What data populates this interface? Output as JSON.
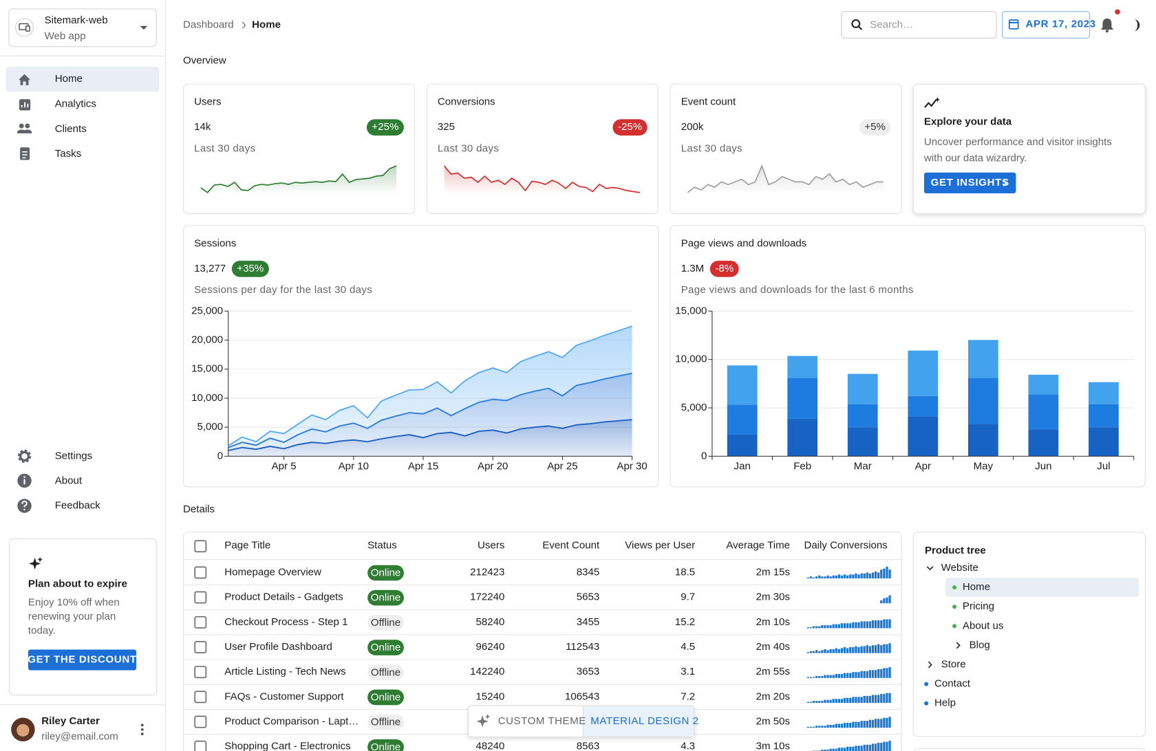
{
  "sidebar": {
    "app_name": "Sitemark-web",
    "app_type": "Web app",
    "nav": [
      "Home",
      "Analytics",
      "Clients",
      "Tasks"
    ],
    "secondary_nav": [
      "Settings",
      "About",
      "Feedback"
    ],
    "promo": {
      "title": "Plan about to expire",
      "text_lines": [
        "Enjoy 10% off when",
        "renewing your plan",
        "today."
      ],
      "button": "GET THE DISCOUNT"
    },
    "user": {
      "name": "Riley Carter",
      "email": "riley@email.com"
    }
  },
  "header": {
    "breadcrumb": [
      "Dashboard",
      "Home"
    ],
    "search_placeholder": "Search…",
    "date": "APR 17, 2023"
  },
  "overview_title": "Overview",
  "stat_cards": [
    {
      "title": "Users",
      "value": "14k",
      "trend": "+25%",
      "trend_color": "#2e7d32",
      "trend_text_color": "#ffffff",
      "period": "Last 30 days",
      "line_color": "#2e7d32",
      "spark": [
        480,
        410,
        520,
        530,
        500,
        560,
        450,
        440,
        510,
        530,
        520,
        540,
        550,
        530,
        560,
        550,
        560,
        570,
        560,
        580,
        570,
        680,
        560,
        600,
        610,
        620,
        650,
        660,
        760,
        800
      ]
    },
    {
      "title": "Conversions",
      "value": "325",
      "trend": "-25%",
      "trend_color": "#d32f2f",
      "trend_text_color": "#ffffff",
      "period": "Last 30 days",
      "line_color": "#d32f2f",
      "spark": [
        720,
        640,
        650,
        600,
        610,
        560,
        620,
        560,
        580,
        540,
        600,
        560,
        480,
        570,
        560,
        540,
        580,
        550,
        500,
        560,
        520,
        510,
        470,
        540,
        500,
        510,
        500,
        480,
        470,
        460
      ]
    },
    {
      "title": "Event count",
      "value": "200k",
      "trend": "+5%",
      "trend_color": "#eeeeee",
      "trend_text_color": "#333333",
      "period": "Last 30 days",
      "line_color": "#9e9e9e",
      "spark": [
        520,
        540,
        530,
        550,
        540,
        560,
        550,
        560,
        570,
        550,
        560,
        620,
        550,
        560,
        580,
        570,
        560,
        560,
        550,
        580,
        570,
        590,
        560,
        570,
        550,
        560,
        540,
        550,
        560,
        560
      ]
    }
  ],
  "explore": {
    "title": "Explore your data",
    "text_lines": [
      "Uncover performance and visitor insights",
      "with our data wizardry."
    ],
    "button": "GET INSIGHTS"
  },
  "chart_data": [
    {
      "type": "area",
      "title": "Sessions",
      "value": "13,277",
      "trend": "+35%",
      "trend_color": "#2e7d32",
      "subtitle": "Sessions per day for the last 30 days",
      "stacked": true,
      "grid": true,
      "categories": [
        null,
        null,
        null,
        null,
        "Apr 5",
        null,
        null,
        null,
        null,
        "Apr 10",
        null,
        null,
        null,
        null,
        "Apr 15",
        null,
        null,
        null,
        null,
        "Apr 20",
        null,
        null,
        null,
        null,
        "Apr 25",
        null,
        null,
        null,
        null,
        "Apr 30"
      ],
      "series": [
        {
          "color": "#1f5fbf",
          "values": [
            1000,
            1500,
            1200,
            1700,
            1300,
            2000,
            2400,
            2200,
            2600,
            2800,
            2500,
            3000,
            3400,
            3700,
            3200,
            3900,
            4100,
            3500,
            4300,
            4500,
            4000,
            4700,
            5000,
            5200,
            4800,
            5400,
            5600,
            5900,
            6100,
            6300
          ]
        },
        {
          "color": "#2b78d8",
          "values": [
            500,
            900,
            700,
            1400,
            1100,
            1700,
            2300,
            2000,
            2600,
            2900,
            2300,
            3200,
            3500,
            3800,
            4100,
            4400,
            2900,
            4700,
            5000,
            5300,
            5600,
            5900,
            6200,
            6500,
            5600,
            6800,
            7100,
            7400,
            7700,
            8000
          ]
        },
        {
          "color": "#5aacf2",
          "values": [
            300,
            900,
            600,
            1200,
            1500,
            1800,
            2400,
            2100,
            2700,
            3000,
            1800,
            3300,
            3600,
            3900,
            4200,
            4500,
            3900,
            4800,
            5100,
            5400,
            4800,
            5700,
            6000,
            6300,
            6600,
            6900,
            7200,
            7500,
            7800,
            8100
          ]
        }
      ],
      "ylim": [
        0,
        25000
      ],
      "yticks": [
        0,
        {
          "value": 5000,
          "label": "5,000"
        },
        {
          "value": 10000,
          "label": "10,000"
        },
        {
          "value": 15000,
          "label": "15,000"
        },
        {
          "value": 20000,
          "label": "20,000"
        },
        {
          "value": 25000,
          "label": "25,000"
        }
      ]
    },
    {
      "type": "bar",
      "title": "Page views and downloads",
      "value": "1.3M",
      "trend": "-8%",
      "trend_color": "#d32f2f",
      "subtitle": "Page views and downloads for the last 6 months",
      "stacked": true,
      "grid": true,
      "categories": [
        "Jan",
        "Feb",
        "Mar",
        "Apr",
        "May",
        "Jun",
        "Jul"
      ],
      "series": [
        {
          "color": "#1763c4",
          "values": [
            2234,
            3872,
            2998,
            4125,
            3357,
            2789,
            2998
          ]
        },
        {
          "color": "#1e7be0",
          "values": [
            3098,
            4215,
            2384,
            2101,
            4752,
            3593,
            2384
          ]
        },
        {
          "color": "#42a2ee",
          "values": [
            4051,
            2275,
            3129,
            4693,
            3904,
            2038,
            2275
          ]
        }
      ],
      "ylim": [
        0,
        15000
      ],
      "yticks": [
        0,
        {
          "value": 5000,
          "label": "5,000"
        },
        {
          "value": 10000,
          "label": "10,000"
        },
        {
          "value": 15000,
          "label": "15,000"
        }
      ]
    }
  ],
  "details": {
    "title": "Details",
    "columns": [
      "Page Title",
      "Status",
      "Users",
      "Event Count",
      "Views per User",
      "Average Time",
      "Daily Conversions"
    ],
    "status_colors": {
      "Online": {
        "bg": "#2e7d32",
        "fg": "#ffffff"
      },
      "Offline": {
        "bg": "#eeeeee",
        "fg": "#333333"
      }
    },
    "bar_color": "#1976d2",
    "rows": [
      {
        "title": "Homepage Overview",
        "status": "Online",
        "users": 212423,
        "event_count": 8345,
        "views_per_user": 18.5,
        "avg_time": "2m 15s",
        "conversions": [
          1,
          2,
          1,
          2,
          3,
          2,
          2,
          3,
          2,
          3,
          3,
          4,
          3,
          4,
          3,
          4,
          4,
          5,
          4,
          5,
          5,
          6,
          5,
          6,
          7,
          6,
          9,
          10,
          12,
          9
        ]
      },
      {
        "title": "Product Details - Gadgets",
        "status": "Online",
        "users": 172240,
        "event_count": 5653,
        "views_per_user": 9.7,
        "avg_time": "2m 30s",
        "conversions": [
          0,
          0,
          0,
          0,
          0,
          0,
          0,
          0,
          0,
          0,
          0,
          0,
          0,
          0,
          0,
          0,
          0,
          0,
          0,
          0,
          0,
          0,
          0,
          0,
          0,
          0,
          3,
          5,
          6,
          8
        ]
      },
      {
        "title": "Checkout Process - Step 1",
        "status": "Offline",
        "users": 58240,
        "event_count": 3455,
        "views_per_user": 15.2,
        "avg_time": "2m 10s",
        "conversions": [
          1,
          1,
          2,
          2,
          2,
          3,
          3,
          3,
          3,
          4,
          4,
          4,
          5,
          5,
          5,
          5,
          6,
          6,
          6,
          7,
          7,
          7,
          7,
          8,
          8,
          8,
          8,
          9,
          9,
          9
        ]
      },
      {
        "title": "User Profile Dashboard",
        "status": "Online",
        "users": 96240,
        "event_count": 112543,
        "views_per_user": 4.5,
        "avg_time": "2m 40s",
        "conversions": [
          1,
          2,
          2,
          3,
          2,
          3,
          4,
          3,
          4,
          4,
          5,
          4,
          5,
          6,
          5,
          6,
          6,
          7,
          6,
          7,
          7,
          8,
          7,
          8,
          8,
          9,
          8,
          9,
          9,
          10
        ]
      },
      {
        "title": "Article Listing - Tech News",
        "status": "Offline",
        "users": 142240,
        "event_count": 3653,
        "views_per_user": 3.1,
        "avg_time": "2m 55s",
        "conversions": [
          1,
          1,
          1,
          2,
          2,
          2,
          3,
          3,
          3,
          3,
          4,
          4,
          4,
          5,
          5,
          5,
          6,
          6,
          6,
          7,
          7,
          7,
          8,
          8,
          8,
          9,
          9,
          10,
          10,
          11
        ]
      },
      {
        "title": "FAQs - Customer Support",
        "status": "Online",
        "users": 15240,
        "event_count": 106543,
        "views_per_user": 7.2,
        "avg_time": "2m 20s",
        "conversions": [
          1,
          1,
          2,
          2,
          2,
          2,
          3,
          3,
          3,
          4,
          4,
          4,
          4,
          5,
          5,
          5,
          6,
          6,
          6,
          6,
          7,
          7,
          7,
          8,
          8,
          8,
          9,
          9,
          10,
          10
        ]
      },
      {
        "title": "Product Comparison - Lapt…",
        "status": "Offline",
        "users": null,
        "event_count": null,
        "views_per_user": null,
        "avg_time": "2m 50s",
        "conversions": [
          1,
          1,
          1,
          2,
          2,
          2,
          2,
          3,
          3,
          3,
          4,
          4,
          4,
          5,
          5,
          5,
          6,
          6,
          6,
          7,
          7,
          7,
          8,
          8,
          9,
          9,
          9,
          10,
          10,
          11
        ]
      },
      {
        "title": "Shopping Cart - Electronics",
        "status": "Online",
        "users": 48240,
        "event_count": 8563,
        "views_per_user": 4.3,
        "avg_time": "3m 10s",
        "conversions": [
          1,
          1,
          2,
          2,
          2,
          3,
          3,
          3,
          4,
          4,
          4,
          5,
          5,
          5,
          6,
          6,
          6,
          7,
          7,
          7,
          8,
          8,
          8,
          9,
          9,
          10,
          10,
          11,
          11,
          12
        ]
      }
    ]
  },
  "tree": {
    "title": "Product tree",
    "items": [
      {
        "label": "Website",
        "depth": 0,
        "marker": "expanded"
      },
      {
        "label": "Home",
        "depth": 1,
        "marker": "bullet",
        "marker_color": "#4caf50",
        "selected": true
      },
      {
        "label": "Pricing",
        "depth": 1,
        "marker": "bullet",
        "marker_color": "#4caf50"
      },
      {
        "label": "About us",
        "depth": 1,
        "marker": "bullet",
        "marker_color": "#4caf50"
      },
      {
        "label": "Blog",
        "depth": 1,
        "marker": "collapsed"
      },
      {
        "label": "Store",
        "depth": 0,
        "marker": "collapsed"
      },
      {
        "label": "Contact",
        "depth": 0,
        "marker": "bullet",
        "marker_color": "#1976d2"
      },
      {
        "label": "Help",
        "depth": 0,
        "marker": "bullet",
        "marker_color": "#1976d2"
      }
    ]
  },
  "theme_toggle": [
    "CUSTOM THEME",
    "MATERIAL DESIGN 2"
  ]
}
